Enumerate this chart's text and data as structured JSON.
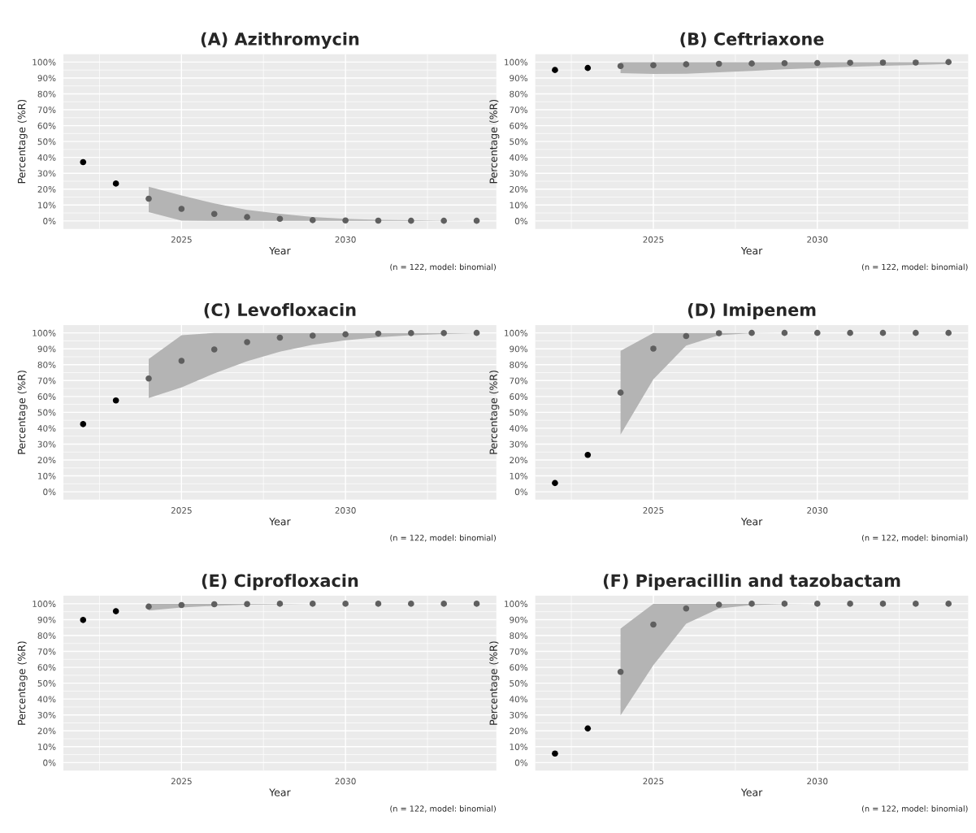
{
  "chart_data": [
    {
      "type": "scatter",
      "title": "(A) Azithromycin",
      "xlabel": "Year",
      "ylabel": "Percentage (%R)",
      "annotations": [
        "(n = 122, model: binomial)"
      ],
      "xlim": [
        2021.4,
        2034.6
      ],
      "ylim": [
        -5,
        105
      ],
      "xticks": [
        2025,
        2030
      ],
      "yticks": [
        {
          "value": 0,
          "label": "0%"
        },
        {
          "value": 10,
          "label": "10%"
        },
        {
          "value": 20,
          "label": "20%"
        },
        {
          "value": 30,
          "label": "30%"
        },
        {
          "value": 40,
          "label": "40%"
        },
        {
          "value": 50,
          "label": "50%"
        },
        {
          "value": 60,
          "label": "60%"
        },
        {
          "value": 70,
          "label": "70%"
        },
        {
          "value": 80,
          "label": "80%"
        },
        {
          "value": 90,
          "label": "90%"
        },
        {
          "value": 100,
          "label": "100%"
        }
      ],
      "grid": true,
      "marker": "circle",
      "series": [
        {
          "color": "#000000",
          "x": [
            2022,
            2023
          ],
          "values": [
            37,
            23.5
          ]
        },
        {
          "color": "#5f5f5f",
          "x": [
            2024,
            2025,
            2026,
            2027,
            2028,
            2029,
            2030,
            2031,
            2032,
            2033,
            2034
          ],
          "values": [
            14,
            7.6,
            4.4,
            2.4,
            1.3,
            0.5,
            0.3,
            0.2,
            0.1,
            0.1,
            0.1
          ],
          "lower": [
            5.5,
            0.2,
            0,
            0,
            0,
            0,
            0,
            0,
            0,
            0,
            0
          ],
          "upper": [
            21.5,
            16,
            11,
            7,
            4.5,
            2.5,
            1.3,
            0.7,
            0.4,
            0.2,
            0.1
          ]
        }
      ]
    },
    {
      "type": "scatter",
      "title": "(B) Ceftriaxone",
      "xlabel": "Year",
      "ylabel": "Percentage (%R)",
      "annotations": [
        "(n = 122, model: binomial)"
      ],
      "xlim": [
        2021.4,
        2034.6
      ],
      "ylim": [
        -5,
        105
      ],
      "xticks": [
        2025,
        2030
      ],
      "yticks": [
        {
          "value": 0,
          "label": "0%"
        },
        {
          "value": 10,
          "label": "10%"
        },
        {
          "value": 20,
          "label": "20%"
        },
        {
          "value": 30,
          "label": "30%"
        },
        {
          "value": 40,
          "label": "40%"
        },
        {
          "value": 50,
          "label": "50%"
        },
        {
          "value": 60,
          "label": "60%"
        },
        {
          "value": 70,
          "label": "70%"
        },
        {
          "value": 80,
          "label": "80%"
        },
        {
          "value": 90,
          "label": "90%"
        },
        {
          "value": 100,
          "label": "100%"
        }
      ],
      "grid": true,
      "marker": "circle",
      "series": [
        {
          "color": "#000000",
          "x": [
            2022,
            2023
          ],
          "values": [
            95,
            96.3
          ]
        },
        {
          "color": "#5f5f5f",
          "x": [
            2024,
            2025,
            2026,
            2027,
            2028,
            2029,
            2030,
            2031,
            2032,
            2033,
            2034
          ],
          "values": [
            97.5,
            98,
            98.6,
            98.9,
            99.1,
            99.3,
            99.4,
            99.6,
            99.7,
            99.7,
            100
          ],
          "lower": [
            93,
            92.5,
            92.7,
            93.5,
            94.5,
            95.5,
            96.3,
            97,
            97.6,
            98.1,
            98.8
          ],
          "upper": [
            100,
            100,
            100,
            100,
            100,
            100,
            100,
            100,
            100,
            100,
            100
          ]
        }
      ]
    },
    {
      "type": "scatter",
      "title": "(C) Levofloxacin",
      "xlabel": "Year",
      "ylabel": "Percentage (%R)",
      "annotations": [
        "(n = 122, model: binomial)"
      ],
      "xlim": [
        2021.4,
        2034.6
      ],
      "ylim": [
        -5,
        105
      ],
      "xticks": [
        2025,
        2030
      ],
      "yticks": [
        {
          "value": 0,
          "label": "0%"
        },
        {
          "value": 10,
          "label": "10%"
        },
        {
          "value": 20,
          "label": "20%"
        },
        {
          "value": 30,
          "label": "30%"
        },
        {
          "value": 40,
          "label": "40%"
        },
        {
          "value": 50,
          "label": "50%"
        },
        {
          "value": 60,
          "label": "60%"
        },
        {
          "value": 70,
          "label": "70%"
        },
        {
          "value": 80,
          "label": "80%"
        },
        {
          "value": 90,
          "label": "90%"
        },
        {
          "value": 100,
          "label": "100%"
        }
      ],
      "grid": true,
      "marker": "circle",
      "series": [
        {
          "color": "#000000",
          "x": [
            2022,
            2023
          ],
          "values": [
            42.6,
            57.5
          ]
        },
        {
          "color": "#5f5f5f",
          "x": [
            2024,
            2025,
            2026,
            2027,
            2028,
            2029,
            2030,
            2031,
            2032,
            2033,
            2034
          ],
          "values": [
            71.3,
            82.4,
            89.6,
            94.2,
            97,
            98.3,
            99.1,
            99.6,
            99.9,
            99.9,
            100
          ],
          "lower": [
            59,
            65.7,
            74.5,
            82.2,
            88.2,
            92.5,
            95.3,
            97.3,
            98.5,
            99.3,
            99.8
          ],
          "upper": [
            83.6,
            98.5,
            100,
            100,
            100,
            100,
            100,
            100,
            100,
            100,
            100
          ]
        }
      ]
    },
    {
      "type": "scatter",
      "title": "(D) Imipenem",
      "xlabel": "Year",
      "ylabel": "Percentage (%R)",
      "annotations": [
        "(n = 122, model: binomial)"
      ],
      "xlim": [
        2021.4,
        2034.6
      ],
      "ylim": [
        -5,
        105
      ],
      "xticks": [
        2025,
        2030
      ],
      "yticks": [
        {
          "value": 0,
          "label": "0%"
        },
        {
          "value": 10,
          "label": "10%"
        },
        {
          "value": 20,
          "label": "20%"
        },
        {
          "value": 30,
          "label": "30%"
        },
        {
          "value": 40,
          "label": "40%"
        },
        {
          "value": 50,
          "label": "50%"
        },
        {
          "value": 60,
          "label": "60%"
        },
        {
          "value": 70,
          "label": "70%"
        },
        {
          "value": 80,
          "label": "80%"
        },
        {
          "value": 90,
          "label": "90%"
        },
        {
          "value": 100,
          "label": "100%"
        }
      ],
      "grid": true,
      "marker": "circle",
      "series": [
        {
          "color": "#000000",
          "x": [
            2022,
            2023
          ],
          "values": [
            5.5,
            23.2
          ]
        },
        {
          "color": "#5f5f5f",
          "x": [
            2024,
            2025,
            2026,
            2027,
            2028,
            2029,
            2030,
            2031,
            2032,
            2033,
            2034
          ],
          "values": [
            62.4,
            90.1,
            98,
            99.8,
            100,
            100,
            100,
            100,
            100,
            100,
            100
          ],
          "lower": [
            36,
            70.8,
            92,
            98.5,
            99.8,
            100,
            100,
            100,
            100,
            100,
            100
          ],
          "upper": [
            88.7,
            100,
            100,
            100,
            100,
            100,
            100,
            100,
            100,
            100,
            100
          ]
        }
      ]
    },
    {
      "type": "scatter",
      "title": "(E) Ciprofloxacin",
      "xlabel": "Year",
      "ylabel": "Percentage (%R)",
      "annotations": [
        "(n = 122, model: binomial)"
      ],
      "xlim": [
        2021.4,
        2034.6
      ],
      "ylim": [
        -5,
        105
      ],
      "xticks": [
        2025,
        2030
      ],
      "yticks": [
        {
          "value": 0,
          "label": "0%"
        },
        {
          "value": 10,
          "label": "10%"
        },
        {
          "value": 20,
          "label": "20%"
        },
        {
          "value": 30,
          "label": "30%"
        },
        {
          "value": 40,
          "label": "40%"
        },
        {
          "value": 50,
          "label": "50%"
        },
        {
          "value": 60,
          "label": "60%"
        },
        {
          "value": 70,
          "label": "70%"
        },
        {
          "value": 80,
          "label": "80%"
        },
        {
          "value": 90,
          "label": "90%"
        },
        {
          "value": 100,
          "label": "100%"
        }
      ],
      "grid": true,
      "marker": "circle",
      "series": [
        {
          "color": "#000000",
          "x": [
            2022,
            2023
          ],
          "values": [
            89.8,
            95.3
          ]
        },
        {
          "color": "#5f5f5f",
          "x": [
            2024,
            2025,
            2026,
            2027,
            2028,
            2029,
            2030,
            2031,
            2032,
            2033,
            2034
          ],
          "values": [
            98.2,
            99.2,
            99.7,
            99.8,
            100,
            100,
            100,
            100,
            100,
            100,
            100
          ],
          "lower": [
            95.7,
            97.7,
            98.7,
            99.4,
            99.7,
            99.9,
            100,
            100,
            100,
            100,
            100
          ],
          "upper": [
            100,
            100,
            100,
            100,
            100,
            100,
            100,
            100,
            100,
            100,
            100
          ]
        }
      ]
    },
    {
      "type": "scatter",
      "title": "(F) Piperacillin and tazobactam",
      "xlabel": "Year",
      "ylabel": "Percentage (%R)",
      "annotations": [
        "(n = 122, model: binomial)"
      ],
      "xlim": [
        2021.4,
        2034.6
      ],
      "ylim": [
        -5,
        105
      ],
      "xticks": [
        2025,
        2030
      ],
      "yticks": [
        {
          "value": 0,
          "label": "0%"
        },
        {
          "value": 10,
          "label": "10%"
        },
        {
          "value": 20,
          "label": "20%"
        },
        {
          "value": 30,
          "label": "30%"
        },
        {
          "value": 40,
          "label": "40%"
        },
        {
          "value": 50,
          "label": "50%"
        },
        {
          "value": 60,
          "label": "60%"
        },
        {
          "value": 70,
          "label": "70%"
        },
        {
          "value": 80,
          "label": "80%"
        },
        {
          "value": 90,
          "label": "90%"
        },
        {
          "value": 100,
          "label": "100%"
        }
      ],
      "grid": true,
      "marker": "circle",
      "series": [
        {
          "color": "#000000",
          "x": [
            2022,
            2023
          ],
          "values": [
            5.7,
            21.5
          ]
        },
        {
          "color": "#5f5f5f",
          "x": [
            2024,
            2025,
            2026,
            2027,
            2028,
            2029,
            2030,
            2031,
            2032,
            2033,
            2034
          ],
          "values": [
            57.1,
            86.9,
            97,
            99.4,
            100,
            100,
            100,
            100,
            100,
            100,
            100
          ],
          "lower": [
            29.7,
            61.3,
            87.4,
            97,
            99.2,
            99.8,
            100,
            100,
            100,
            100,
            100
          ],
          "upper": [
            84.4,
            100,
            100,
            100,
            100,
            100,
            100,
            100,
            100,
            100,
            100
          ]
        }
      ]
    }
  ]
}
